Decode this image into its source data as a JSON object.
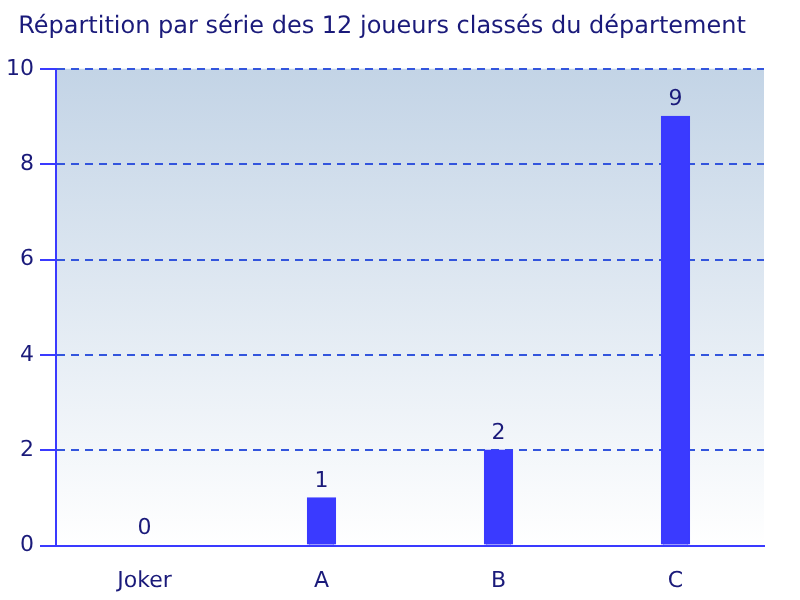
{
  "chart_data": {
    "type": "bar",
    "title": "Répartition par série des 12 joueurs classés du département",
    "categories": [
      "Joker",
      "A",
      "B",
      "C"
    ],
    "series": [
      {
        "color": "#3a3aff",
        "values": [
          0,
          1,
          2,
          9
        ]
      }
    ],
    "ylim": [
      0,
      10
    ],
    "yticks": [
      0,
      2,
      4,
      6,
      8,
      10
    ],
    "grid": "y",
    "data_labels": true
  }
}
